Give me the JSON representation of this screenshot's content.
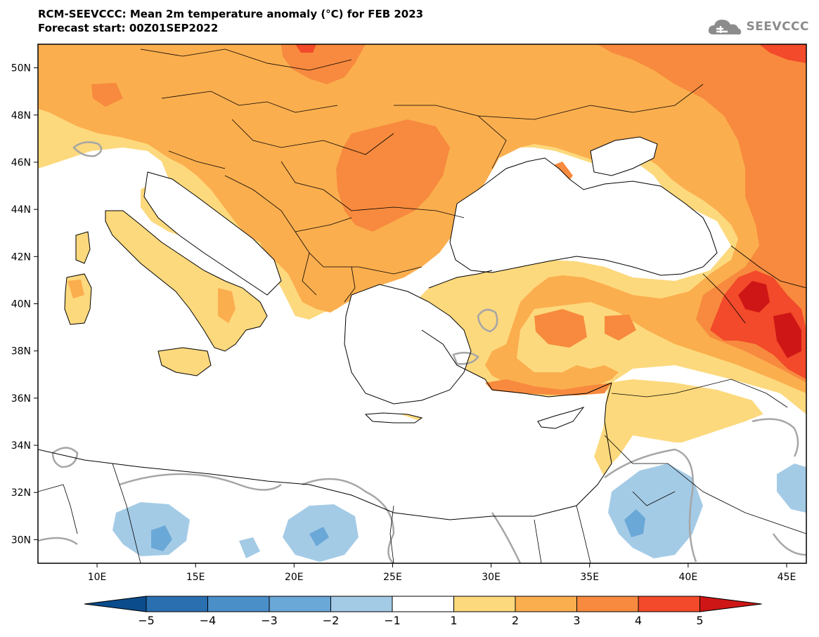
{
  "title": {
    "line1": "RCM-SEEVCCC: Mean 2m temperature anomaly (°C) for FEB 2023",
    "line2": "Forecast start: 00Z01SEP2022"
  },
  "logo": {
    "icon": "cloud-icon",
    "text": "SEEVCCC"
  },
  "map": {
    "lat_labels": [
      "50N",
      "48N",
      "46N",
      "44N",
      "42N",
      "40N",
      "38N",
      "36N",
      "34N",
      "32N",
      "30N"
    ],
    "lon_labels": [
      "10E",
      "15E",
      "20E",
      "25E",
      "30E",
      "35E",
      "40E",
      "45E"
    ],
    "lat_values": [
      50,
      48,
      46,
      44,
      42,
      40,
      38,
      36,
      34,
      32,
      30
    ],
    "lon_values": [
      10,
      15,
      20,
      25,
      30,
      35,
      40,
      45
    ],
    "lon_range": [
      7,
      46
    ],
    "lat_range": [
      29,
      51
    ],
    "land_color": "#fdd97d",
    "sea_color": "#ffffff"
  },
  "colorbar": {
    "labels": [
      "−5",
      "−4",
      "−3",
      "−2",
      "−1",
      "1",
      "2",
      "3",
      "4",
      "5"
    ],
    "colors": [
      "#0b4c8c",
      "#2a6fb0",
      "#4b8fc9",
      "#6aa8d8",
      "#a4cbe6",
      "#ffffff",
      "#fdd97d",
      "#fbae4e",
      "#f78a3e",
      "#f24a2a",
      "#cf1616"
    ]
  }
}
